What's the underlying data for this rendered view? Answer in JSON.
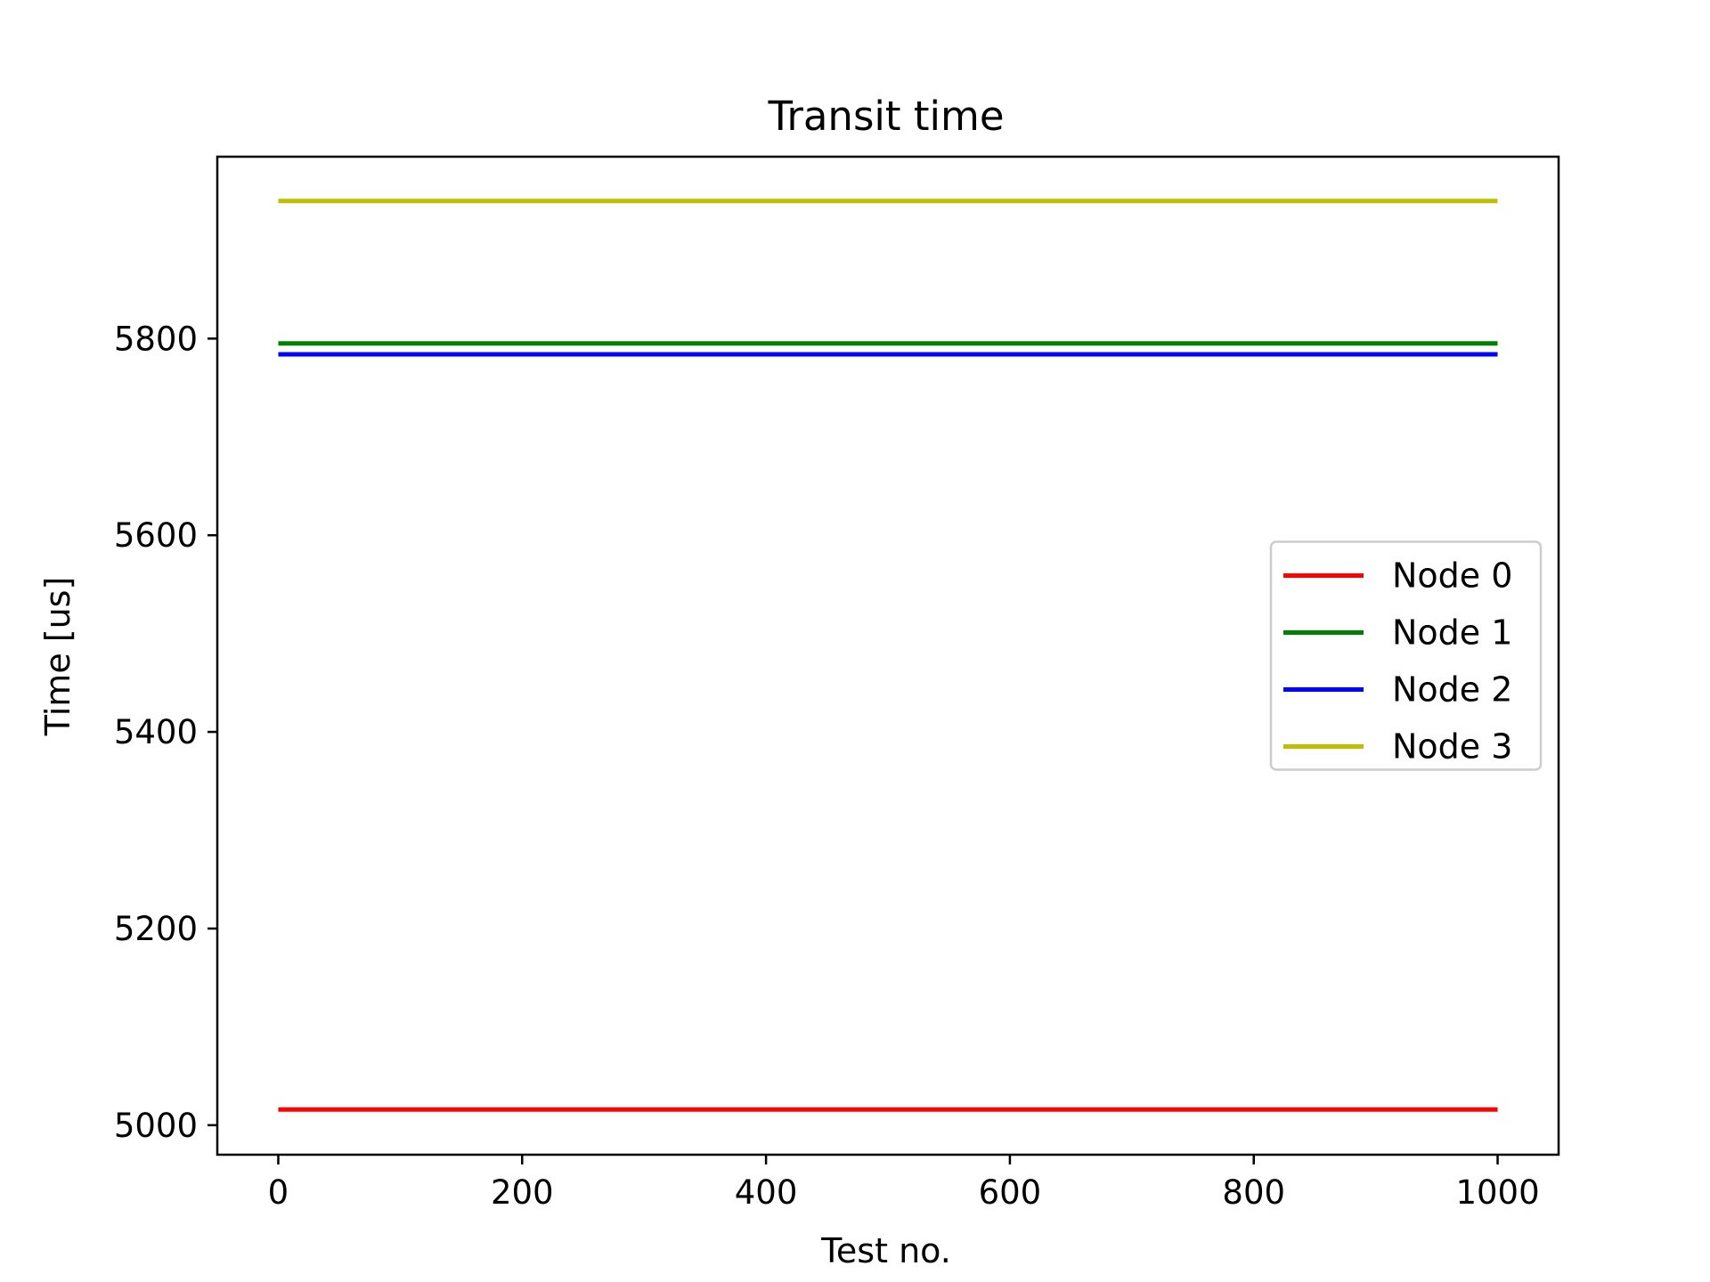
{
  "chart_data": {
    "type": "line",
    "title": "Transit time",
    "xlabel": "Test no.",
    "ylabel": "Time [us]",
    "xlim": [
      -50,
      1050
    ],
    "ylim": [
      4970,
      5985
    ],
    "x_ticks": [
      0,
      200,
      400,
      600,
      800,
      1000
    ],
    "y_ticks": [
      5000,
      5200,
      5400,
      5600,
      5800
    ],
    "grid": false,
    "legend_position": "center-right",
    "series": [
      {
        "name": "Node 0",
        "color": "#ff0000",
        "x": [
          0,
          1000
        ],
        "y": [
          5016,
          5016
        ]
      },
      {
        "name": "Node 1",
        "color": "#008000",
        "x": [
          0,
          1000
        ],
        "y": [
          5795,
          5795
        ]
      },
      {
        "name": "Node 2",
        "color": "#0000ff",
        "x": [
          0,
          1000
        ],
        "y": [
          5784,
          5784
        ]
      },
      {
        "name": "Node 3",
        "color": "#bfbf00",
        "x": [
          0,
          1000
        ],
        "y": [
          5940,
          5940
        ]
      }
    ]
  }
}
